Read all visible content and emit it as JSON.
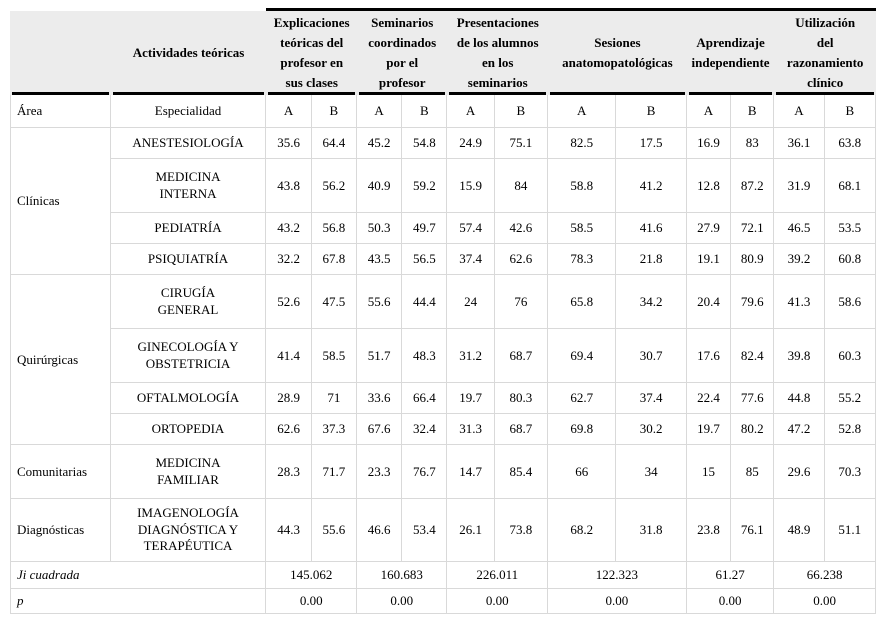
{
  "table": {
    "top_header": [
      {
        "label": "",
        "type": "lead"
      },
      {
        "label": "Actividades teóricas",
        "type": "lead"
      },
      {
        "label": "Explicaciones\nteóricas del\nprofesor en\nsus clases",
        "type": "stat"
      },
      {
        "label": "Seminarios\ncoordinados\npor el\nprofesor",
        "type": "stat"
      },
      {
        "label": "Presentaciones\nde los alumnos\nen los\nseminarios",
        "type": "stat"
      },
      {
        "label": "Sesiones\nanatomopatológicas",
        "type": "stat"
      },
      {
        "label": "Aprendizaje\nindependiente",
        "type": "stat"
      },
      {
        "label": "Utilización\ndel\nrazonamiento\nclínico",
        "type": "stat"
      }
    ],
    "sub_header": {
      "area": "Área",
      "especialidad": "Especialidad",
      "ab_labels": [
        "A",
        "B",
        "A",
        "B",
        "A",
        "B",
        "A",
        "B",
        "A",
        "B",
        "A",
        "B"
      ]
    },
    "groups": [
      {
        "area": "Clínicas",
        "rows": [
          {
            "especialidad": "ANESTESIOLOGÍA",
            "values": [
              "35.6",
              "64.4",
              "45.2",
              "54.8",
              "24.9",
              "75.1",
              "82.5",
              "17.5",
              "16.9",
              "83",
              "36.1",
              "63.8"
            ]
          },
          {
            "especialidad": "MEDICINA\nINTERNA",
            "values": [
              "43.8",
              "56.2",
              "40.9",
              "59.2",
              "15.9",
              "84",
              "58.8",
              "41.2",
              "12.8",
              "87.2",
              "31.9",
              "68.1"
            ]
          },
          {
            "especialidad": "PEDIATRÍA",
            "values": [
              "43.2",
              "56.8",
              "50.3",
              "49.7",
              "57.4",
              "42.6",
              "58.5",
              "41.6",
              "27.9",
              "72.1",
              "46.5",
              "53.5"
            ]
          },
          {
            "especialidad": "PSIQUIATRÍA",
            "values": [
              "32.2",
              "67.8",
              "43.5",
              "56.5",
              "37.4",
              "62.6",
              "78.3",
              "21.8",
              "19.1",
              "80.9",
              "39.2",
              "60.8"
            ]
          }
        ]
      },
      {
        "area": "Quirúrgicas",
        "rows": [
          {
            "especialidad": "CIRUGÍA\nGENERAL",
            "values": [
              "52.6",
              "47.5",
              "55.6",
              "44.4",
              "24",
              "76",
              "65.8",
              "34.2",
              "20.4",
              "79.6",
              "41.3",
              "58.6"
            ]
          },
          {
            "especialidad": "GINECOLOGÍA Y\nOBSTETRICIA",
            "values": [
              "41.4",
              "58.5",
              "51.7",
              "48.3",
              "31.2",
              "68.7",
              "69.4",
              "30.7",
              "17.6",
              "82.4",
              "39.8",
              "60.3"
            ]
          },
          {
            "especialidad": "OFTALMOLOGÍA",
            "values": [
              "28.9",
              "71",
              "33.6",
              "66.4",
              "19.7",
              "80.3",
              "62.7",
              "37.4",
              "22.4",
              "77.6",
              "44.8",
              "55.2"
            ]
          },
          {
            "especialidad": "ORTOPEDIA",
            "values": [
              "62.6",
              "37.3",
              "67.6",
              "32.4",
              "31.3",
              "68.7",
              "69.8",
              "30.2",
              "19.7",
              "80.2",
              "47.2",
              "52.8"
            ]
          }
        ]
      },
      {
        "area": "Comunitarias",
        "rows": [
          {
            "especialidad": "MEDICINA\nFAMILIAR",
            "values": [
              "28.3",
              "71.7",
              "23.3",
              "76.7",
              "14.7",
              "85.4",
              "66",
              "34",
              "15",
              "85",
              "29.6",
              "70.3"
            ]
          }
        ]
      },
      {
        "area": "Diagnósticas",
        "rows": [
          {
            "especialidad": "IMAGENOLOGÍA\nDIAGNÓSTICA Y\nTERAPÉUTICA",
            "values": [
              "44.3",
              "55.6",
              "46.6",
              "53.4",
              "26.1",
              "73.8",
              "68.2",
              "31.8",
              "23.8",
              "76.1",
              "48.9",
              "51.1"
            ]
          }
        ]
      }
    ],
    "footer_rows": [
      {
        "label": "Ji cuadrada",
        "values": [
          "145.062",
          "160.683",
          "226.011",
          "122.323",
          "61.27",
          "66.238"
        ]
      },
      {
        "label": "p",
        "values": [
          "0.00",
          "0.00",
          "0.00",
          "0.00",
          "0.00",
          "0.00"
        ]
      }
    ],
    "colors": {
      "header_bg": "#ececec",
      "grid_line": "#d9d9d9",
      "rule_line": "#000000"
    }
  }
}
